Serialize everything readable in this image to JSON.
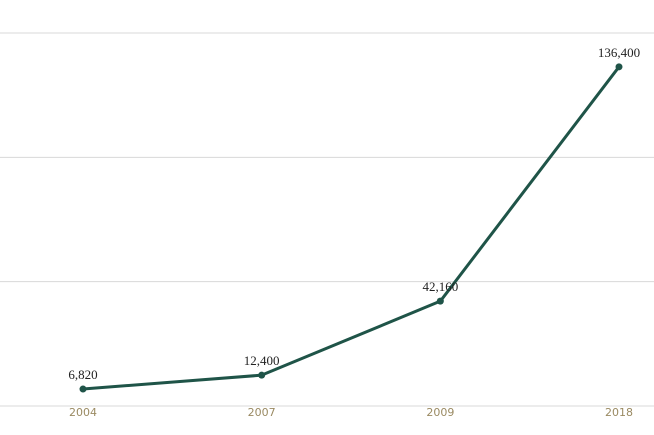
{
  "chart_data": {
    "type": "line",
    "categories": [
      "2004",
      "2007",
      "2009",
      "2018"
    ],
    "series": [
      {
        "color": "#1f5448",
        "values": [
          6820,
          12400,
          42160,
          136400
        ],
        "value_labels": [
          "6,820",
          "12,400",
          "42,160",
          "136,400"
        ]
      }
    ],
    "ylim": [
      0,
      150000
    ],
    "yticks": [
      0,
      50000,
      100000,
      150000
    ],
    "grid": true
  }
}
